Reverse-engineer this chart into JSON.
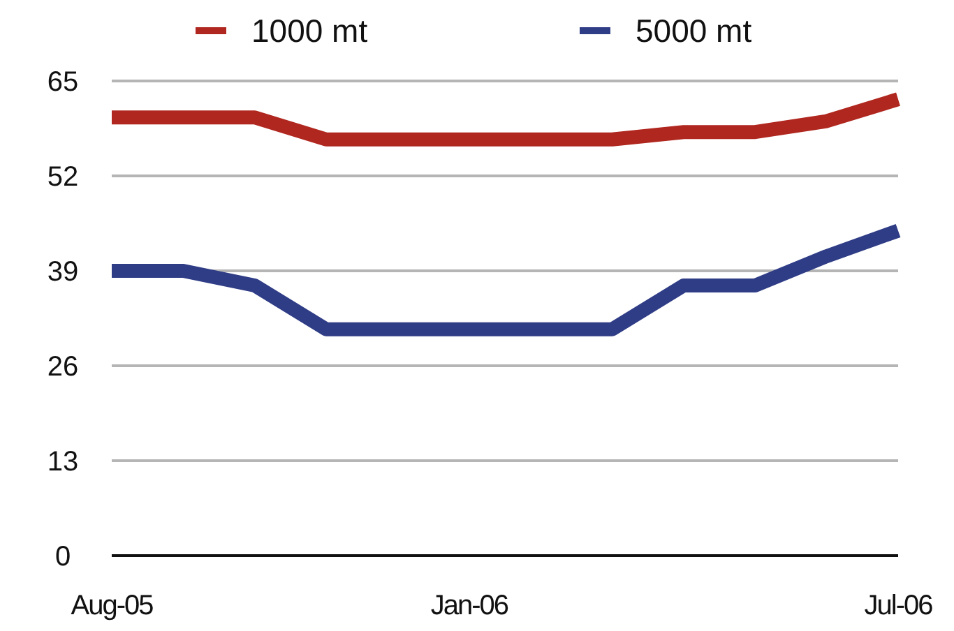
{
  "chart_data": {
    "type": "line",
    "categories": [
      "Aug-05",
      null,
      null,
      null,
      null,
      "Jan-06",
      null,
      null,
      null,
      null,
      null,
      "Jul-06"
    ],
    "series": [
      {
        "name": "1000 mt",
        "color": "#b0271f",
        "values": [
          60,
          60,
          60,
          57,
          57,
          57,
          57,
          57,
          58,
          58,
          59.5,
          62.5
        ]
      },
      {
        "name": "5000 mt",
        "color": "#2f3c86",
        "values": [
          39,
          39,
          37,
          31,
          31,
          31,
          31,
          31,
          37,
          37,
          41,
          44.5
        ]
      }
    ],
    "ylim": [
      0,
      65
    ],
    "yticks": [
      0,
      13,
      26,
      39,
      52,
      65
    ],
    "grid": "y",
    "legend": "top",
    "marker": "none",
    "line_style": "solid"
  }
}
